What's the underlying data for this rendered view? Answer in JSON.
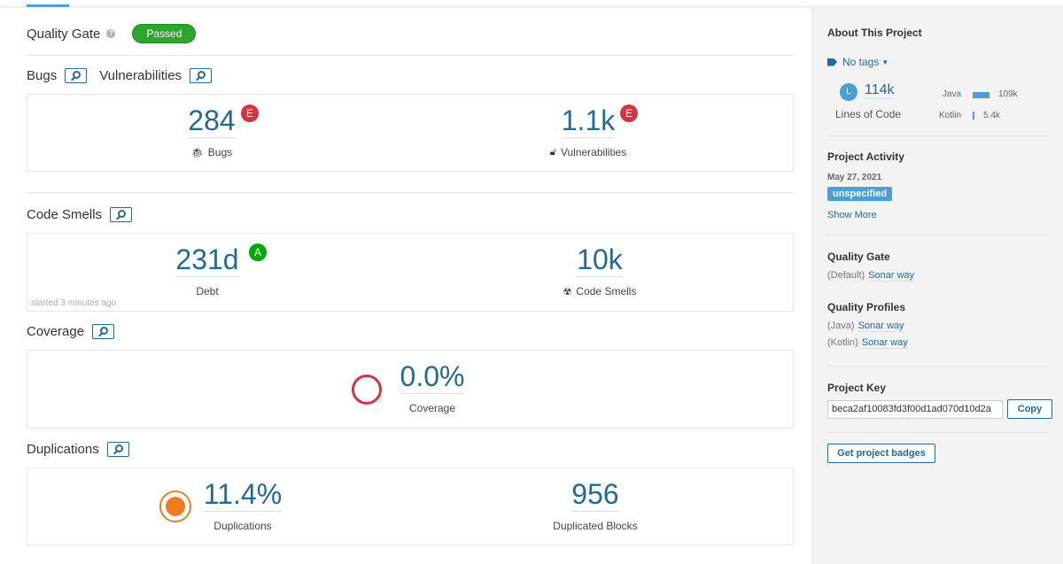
{
  "quality_gate": {
    "title": "Quality Gate",
    "status": "Passed"
  },
  "bugs_section": {
    "title": "Bugs",
    "vuln_title": "Vulnerabilities"
  },
  "bugs": {
    "value": "284",
    "rating": "E",
    "label": "Bugs"
  },
  "vulnerabilities": {
    "value": "1.1k",
    "rating": "E",
    "label": "Vulnerabilities"
  },
  "code_smells_section": {
    "title": "Code Smells",
    "started": "started 3 minutes ago"
  },
  "debt": {
    "value": "231d",
    "rating": "A",
    "label": "Debt"
  },
  "code_smells": {
    "value": "10k",
    "label": "Code Smells"
  },
  "coverage_section": {
    "title": "Coverage"
  },
  "coverage": {
    "value": "0.0%",
    "label": "Coverage"
  },
  "duplications_section": {
    "title": "Duplications"
  },
  "duplications": {
    "value": "11.4%",
    "label": "Duplications"
  },
  "duplicated_blocks": {
    "value": "956",
    "label": "Duplicated Blocks"
  },
  "sidebar": {
    "about_title": "About This Project",
    "tags": "No tags",
    "loc_avatar": "L",
    "loc_value": "114k",
    "loc_label": "Lines of Code",
    "languages": [
      {
        "name": "Java",
        "value": "109k",
        "share": 0.95
      },
      {
        "name": "Kotlin",
        "value": "5.4k",
        "share": 0.05
      }
    ],
    "activity_title": "Project Activity",
    "activity_date": "May 27, 2021",
    "activity_version": "unspecified",
    "show_more": "Show More",
    "qg_title": "Quality Gate",
    "qg_prefix": "(Default)",
    "qg_link": "Sonar way",
    "qp_title": "Quality Profiles",
    "profiles": [
      {
        "lang": "(Java)",
        "name": "Sonar way"
      },
      {
        "lang": "(Kotlin)",
        "name": "Sonar way"
      }
    ],
    "key_title": "Project Key",
    "key_value": "beca2af10083fd3f00d1ad070d10d2a",
    "copy_label": "Copy",
    "badges_label": "Get project badges"
  },
  "colors": {
    "accent": "#236a97",
    "passed": "#2ea42e",
    "rating_e": "#d4333f",
    "rating_a": "#00aa00",
    "duplication": "#ed7d20"
  }
}
